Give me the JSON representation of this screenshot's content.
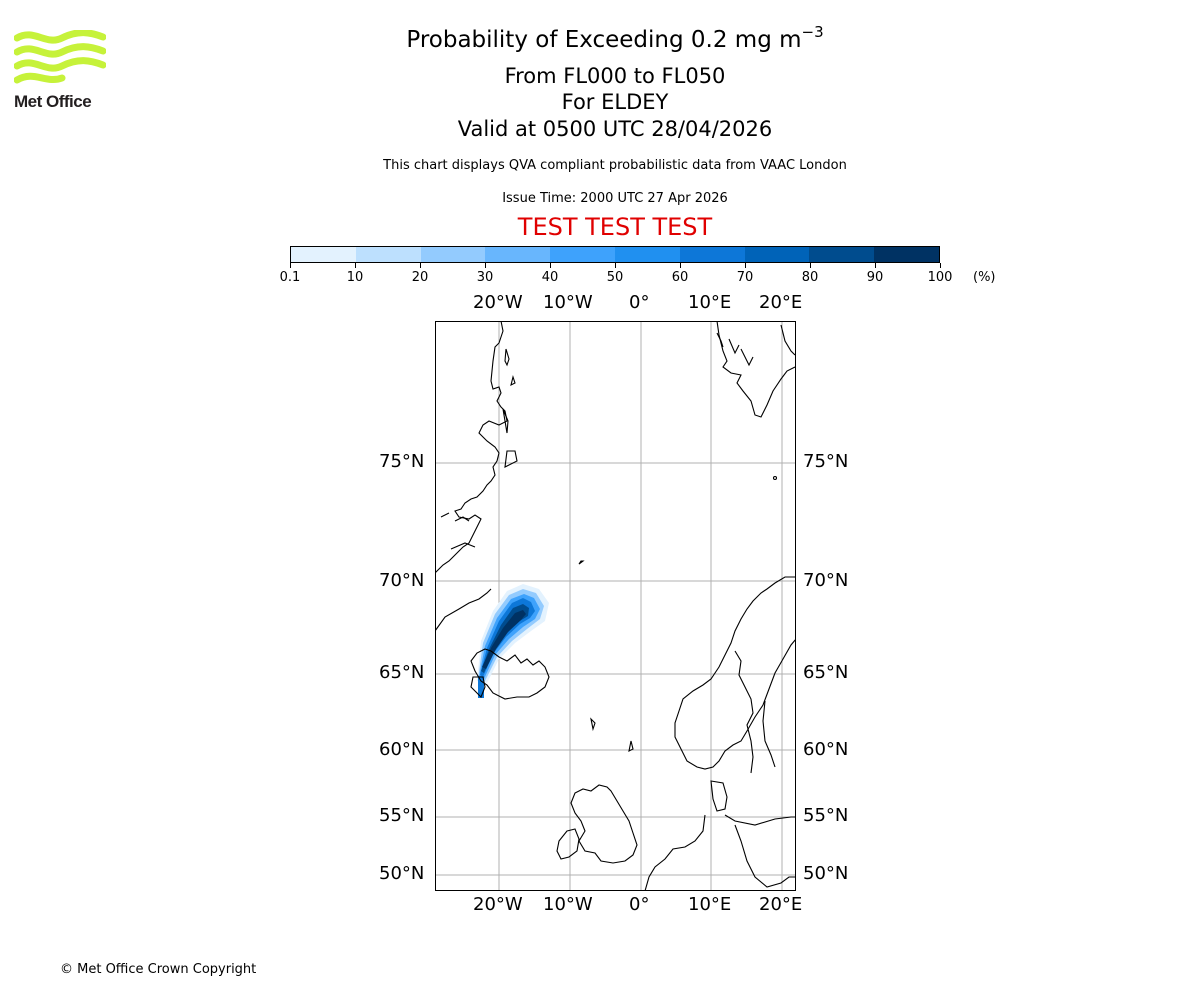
{
  "logo": {
    "text": "Met Office",
    "color": "#c6f23a"
  },
  "header": {
    "title_main": "Probability of Exceeding 0.2 mg m",
    "title_superscript": "−3",
    "flight_levels": "From FL000 to FL050",
    "volcano": "For ELDEY",
    "valid_time": "Valid at 0500 UTC 28/04/2026",
    "description": "This chart displays QVA compliant probabilistic data from VAAC London",
    "issue_time": "Issue Time: 2000 UTC 27 Apr 2026",
    "test_banner": "TEST TEST TEST",
    "test_banner_color": "#e00000"
  },
  "colorbar": {
    "unit_label": "(%)",
    "ticks": [
      "0.1",
      "10",
      "20",
      "30",
      "40",
      "50",
      "60",
      "70",
      "80",
      "90",
      "100"
    ],
    "colors": [
      "#e3f2fe",
      "#bde0fe",
      "#93cbfe",
      "#68b6fd",
      "#3ea2fc",
      "#2090f0",
      "#0d77d8",
      "#0063b8",
      "#004c8e",
      "#003263"
    ]
  },
  "map": {
    "top_lon_labels": [
      "20°W",
      "10°W",
      "0°",
      "10°E",
      "20°E"
    ],
    "bottom_lon_labels": [
      "20°W",
      "10°W",
      "0°",
      "10°E",
      "20°E"
    ],
    "left_lat_labels": [
      "75°N",
      "70°N",
      "65°N",
      "60°N",
      "55°N",
      "50°N"
    ],
    "right_lat_labels": [
      "75°N",
      "70°N",
      "65°N",
      "60°N",
      "55°N",
      "50°N"
    ],
    "gridline_color": "#b0b0b0"
  },
  "chart_data": {
    "type": "heatmap",
    "title": "Probability of Exceeding 0.2 mg m^-3",
    "subtitle": [
      "From FL000 to FL050",
      "For ELDEY",
      "Valid at 0500 UTC 28/04/2026"
    ],
    "colorbar_levels": [
      0.1,
      10,
      20,
      30,
      40,
      50,
      60,
      70,
      80,
      90,
      100
    ],
    "colorbar_unit": "%",
    "lon_ticks": [
      "20°W",
      "10°W",
      "0°",
      "10°E",
      "20°E"
    ],
    "lat_ticks": [
      "75°N",
      "70°N",
      "65°N",
      "60°N",
      "55°N",
      "50°N"
    ],
    "extent_approx": {
      "lon": [
        -29,
        22
      ],
      "lat": [
        49,
        80
      ]
    },
    "plume": {
      "source": "ELDEY (SW of Iceland, ~63.7°N 23°W)",
      "direction": "north-east",
      "max_probability_range": "90-100",
      "approx_core_lat_range": [
        63.5,
        69.5
      ],
      "approx_core_lon_range": [
        -23,
        -15
      ]
    }
  },
  "footer": {
    "copyright": "© Met Office Crown Copyright"
  }
}
